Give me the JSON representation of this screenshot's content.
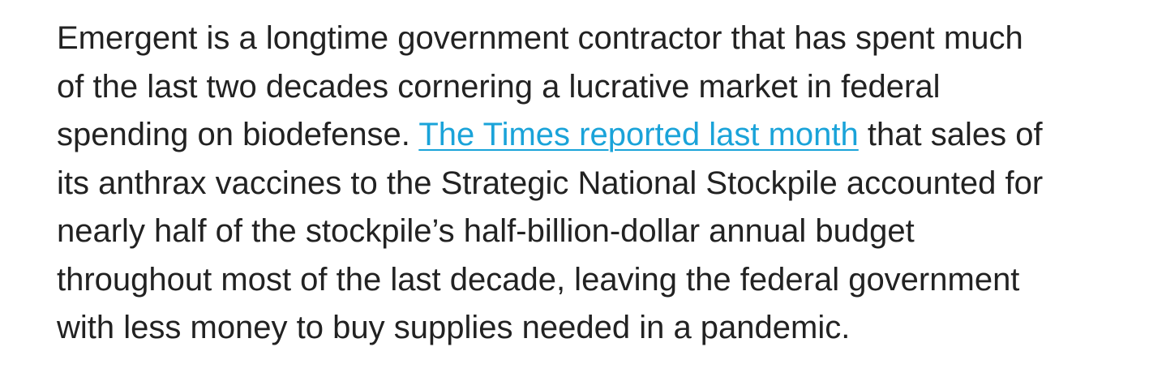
{
  "article": {
    "paragraph": {
      "line1": "Emergent is a longtime government contractor that has spent much",
      "line2": "of the last two decades cornering a lucrative market in federal",
      "line3_before": "spending on biodefense. ",
      "link_text": "The Times reported last month",
      "line3_after": " that sales of",
      "line4": "its anthrax vaccines to the Strategic National Stockpile accounted for",
      "line5": "nearly half of the stockpile’s half-billion-dollar annual budget",
      "line6": "throughout most of the last decade, leaving the federal government",
      "line7": "with less money to buy supplies needed in a pandemic."
    },
    "link_color": "#1aa3d9",
    "text_color": "#222222"
  }
}
